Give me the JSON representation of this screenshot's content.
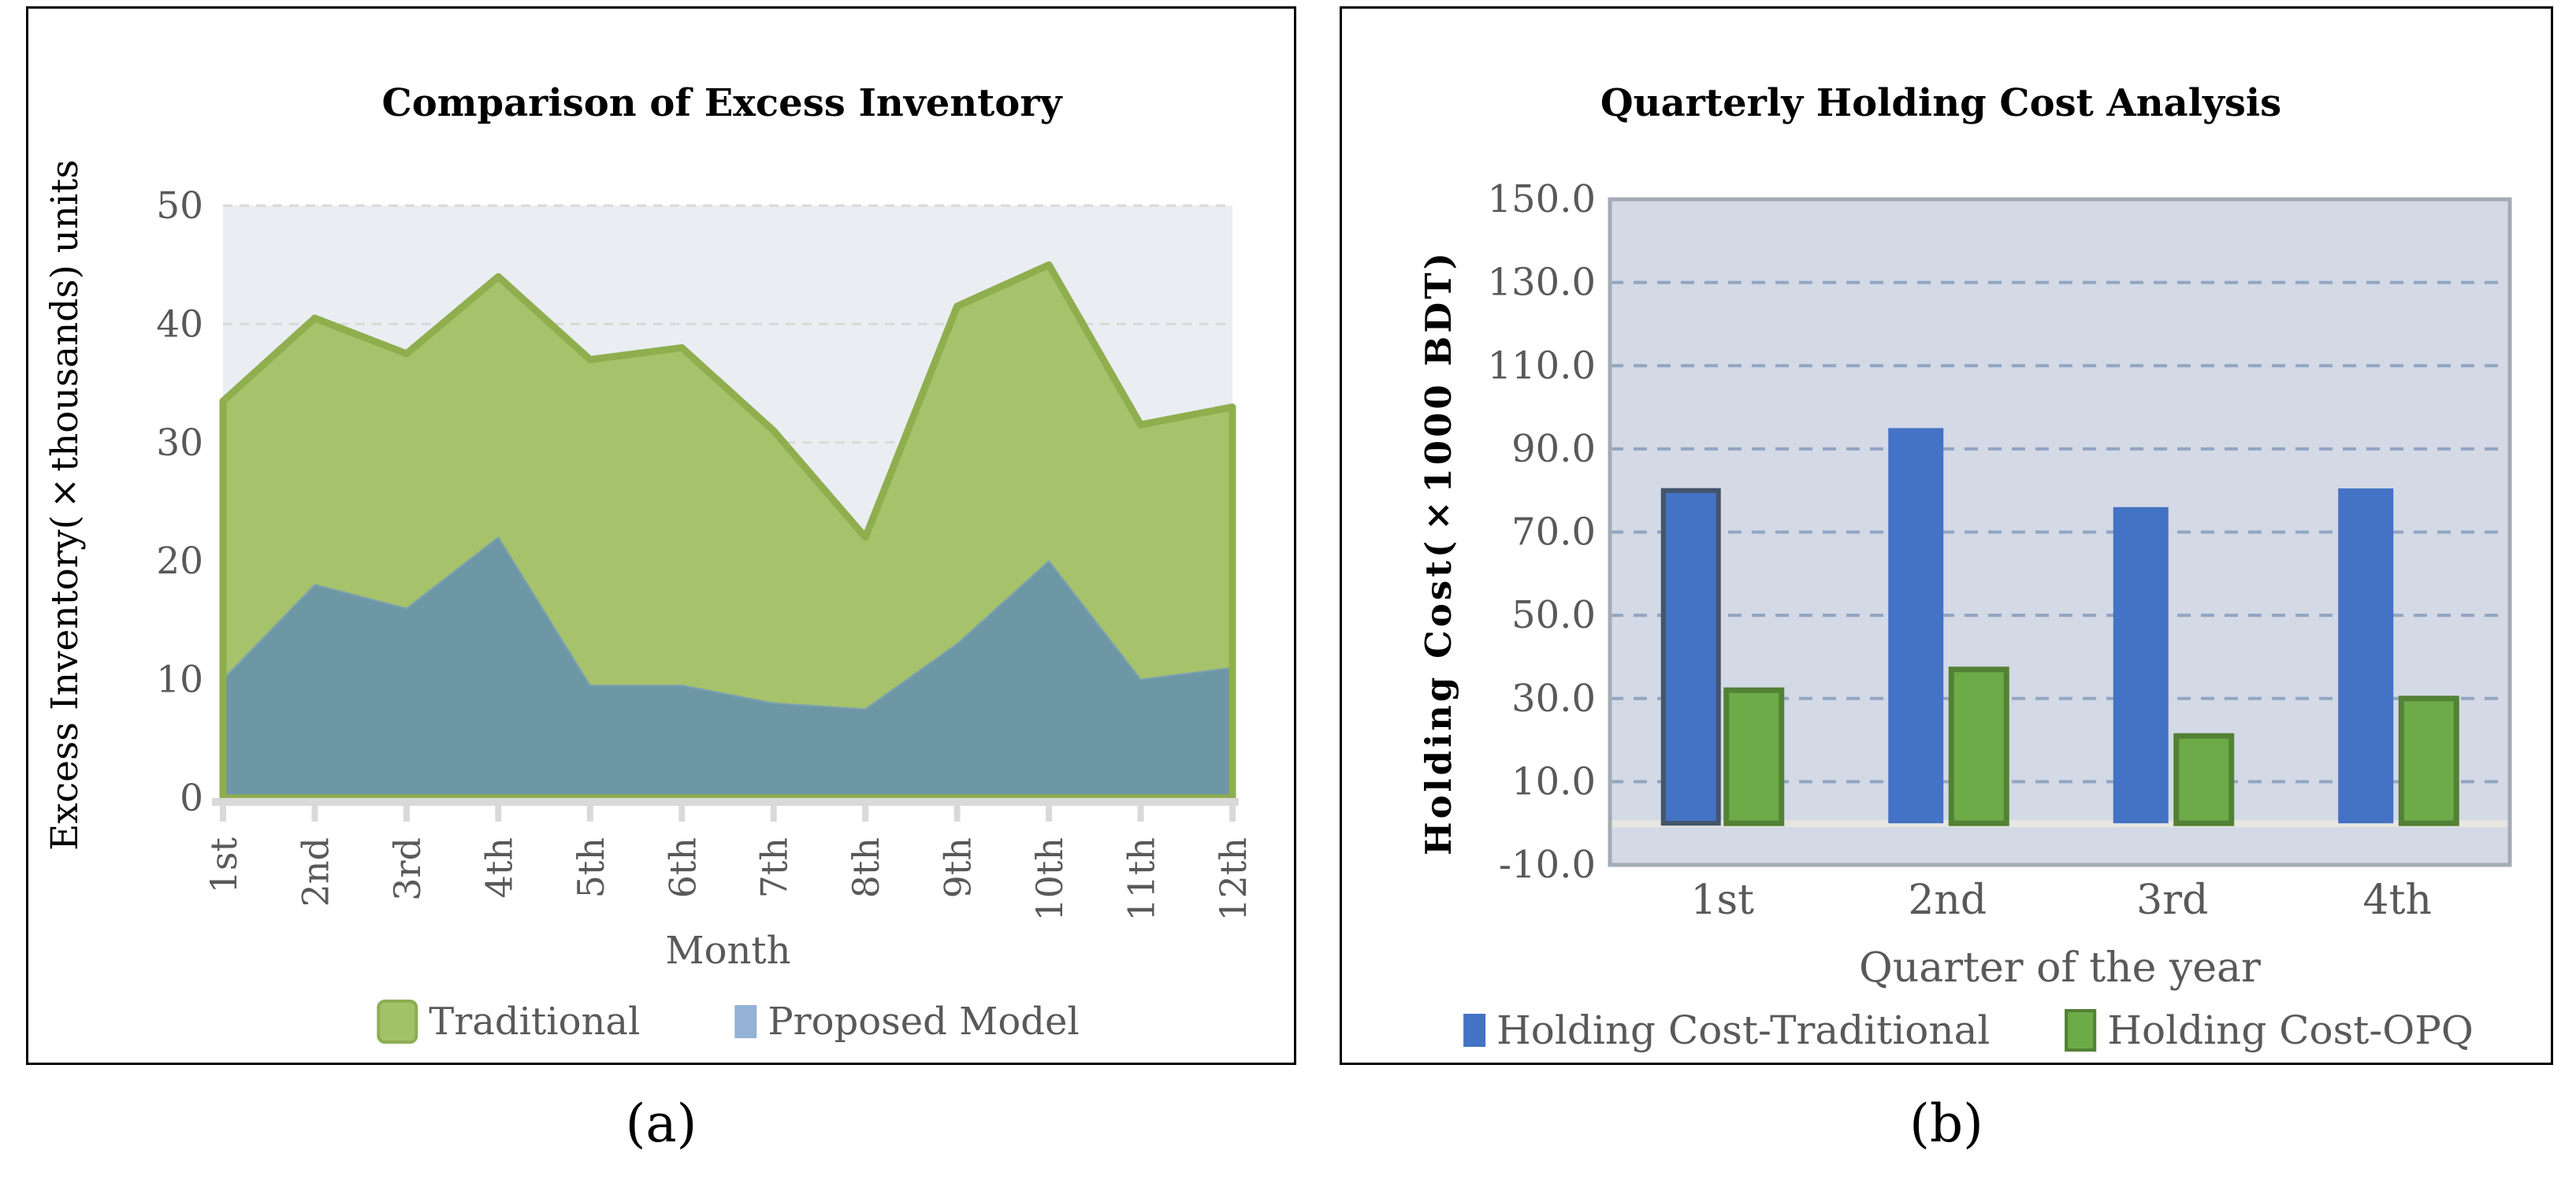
{
  "chart_data": [
    {
      "id": "excess-inventory",
      "type": "area",
      "title": "Comparison of Excess Inventory",
      "xlabel": "Month",
      "ylabel": "Excess Inventory(×thousands) units",
      "categories": [
        "1st",
        "2nd",
        "3rd",
        "4th",
        "5th",
        "6th",
        "7th",
        "8th",
        "9th",
        "10th",
        "11th",
        "12th"
      ],
      "ylim": [
        0,
        50
      ],
      "yticks": [
        0,
        10,
        20,
        30,
        40,
        50
      ],
      "ytick_labels": [
        "0",
        "10",
        "20",
        "30",
        "40",
        "50"
      ],
      "grid": "horizontal-dashed",
      "legend_position": "bottom",
      "plot_bg": "#EAEDF2",
      "grid_color": "#D9D9D6",
      "axis_color": "#D9D9D9",
      "text_color": "#595959",
      "series": [
        {
          "name": "Traditional",
          "values": [
            33.5,
            40.5,
            37.5,
            44,
            37,
            38,
            31,
            22,
            41.5,
            45,
            31.5,
            33
          ],
          "fill": "#A6C26B",
          "stroke": "#8FAE4E",
          "swatch": {
            "fill": "#A3C167",
            "border": "#8DAD53",
            "w": 44,
            "h": 48,
            "radius": 10
          }
        },
        {
          "name": "Proposed Model",
          "values": [
            10,
            18,
            16,
            22,
            9.5,
            9.5,
            8,
            7.5,
            13,
            20,
            10,
            11
          ],
          "fill": "#6E97A6",
          "stroke": "#7DA2B0",
          "swatch": {
            "fill": "#93B2D6",
            "border": "none",
            "w": 28,
            "h": 42,
            "radius": 0
          }
        }
      ],
      "caption": "(a)"
    },
    {
      "id": "holding-cost",
      "type": "bar",
      "title": "Quarterly Holding Cost Analysis",
      "xlabel": "Quarter of the year",
      "ylabel": "Holding Cost(×1000 BDT)",
      "categories": [
        "1st",
        "2nd",
        "3rd",
        "4th"
      ],
      "ylim": [
        -10,
        150
      ],
      "yticks": [
        -10,
        10,
        30,
        50,
        70,
        90,
        110,
        130,
        150
      ],
      "ytick_labels": [
        "-10.0",
        "10.0",
        "30.0",
        "50.0",
        "70.0",
        "90.0",
        "110.0",
        "130.0",
        "150.0"
      ],
      "grid": "horizontal-dashed",
      "legend_position": "bottom",
      "plot_bg": "#D3D9E5",
      "plot_border": "#A3ABB5",
      "grid_color": "#92A5C1",
      "zero_axis_color": "#E8E6E1",
      "text_color": "#595959",
      "series": [
        {
          "name": "Holding Cost-Traditional",
          "values": [
            80,
            95,
            76,
            80.5
          ],
          "fill": "#4472C4",
          "first_bar_stroke": "#44546A",
          "swatch": {
            "fill": "#4472C4",
            "border": "none",
            "w": 28,
            "h": 42,
            "radius": 0
          }
        },
        {
          "name": "Holding Cost-OPQ",
          "values": [
            32,
            37,
            21,
            30
          ],
          "fill": "#6CAB47",
          "stroke": "#538135",
          "swatch": {
            "fill": "#6CAB47",
            "border": "#538135",
            "w": 32,
            "h": 46,
            "radius": 0
          }
        }
      ],
      "caption": "(b)"
    }
  ]
}
